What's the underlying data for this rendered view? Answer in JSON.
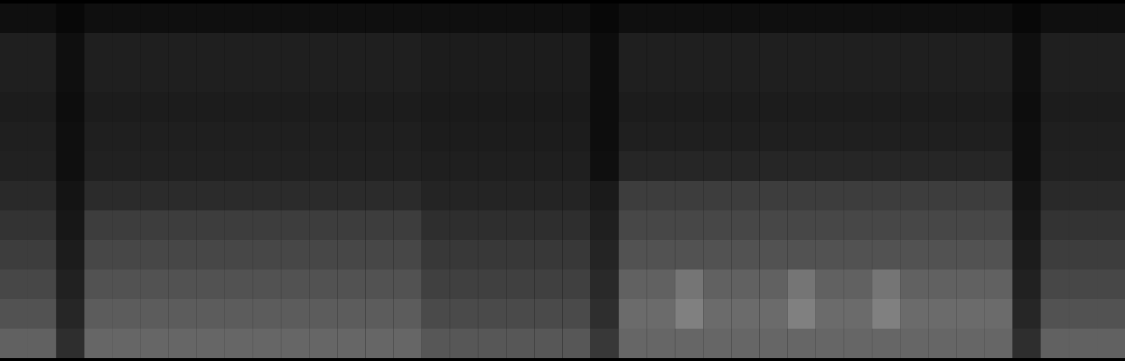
{
  "chart_data": {
    "type": "heatmap",
    "tick_labels": false,
    "zlim": [
      0,
      100
    ],
    "cells": [
      [
        6,
        6,
        3,
        6,
        6,
        6,
        6,
        6,
        6,
        6,
        6,
        6,
        6,
        6,
        6,
        6,
        6,
        6,
        6,
        6,
        6,
        3,
        6,
        6,
        6,
        6,
        6,
        6,
        6,
        6,
        6,
        6,
        6,
        6,
        6,
        6,
        3,
        6,
        6,
        6
      ],
      [
        12,
        12,
        6,
        12,
        12,
        12,
        12,
        12,
        12,
        12,
        12,
        12,
        12,
        12,
        12,
        11,
        11,
        11,
        11,
        11,
        11,
        5,
        12,
        12,
        12,
        12,
        12,
        12,
        12,
        12,
        12,
        12,
        12,
        12,
        12,
        12,
        6,
        12,
        12,
        12
      ],
      [
        12,
        12,
        6,
        12,
        12,
        12,
        12,
        12,
        12,
        12,
        12,
        12,
        12,
        12,
        12,
        11,
        11,
        11,
        11,
        11,
        11,
        5,
        12,
        12,
        12,
        12,
        12,
        12,
        12,
        12,
        12,
        12,
        12,
        12,
        12,
        12,
        6,
        12,
        12,
        12
      ],
      [
        11,
        11,
        5,
        11,
        11,
        11,
        11,
        11,
        11,
        11,
        11,
        11,
        11,
        11,
        11,
        10,
        10,
        10,
        10,
        10,
        10,
        5,
        11,
        11,
        11,
        11,
        11,
        11,
        11,
        11,
        11,
        11,
        11,
        11,
        11,
        11,
        5,
        11,
        11,
        11
      ],
      [
        12,
        12,
        6,
        12,
        12,
        12,
        12,
        12,
        12,
        12,
        12,
        12,
        12,
        12,
        12,
        11,
        11,
        11,
        11,
        11,
        11,
        5,
        12,
        12,
        12,
        12,
        12,
        12,
        12,
        12,
        12,
        12,
        12,
        12,
        12,
        12,
        6,
        12,
        12,
        12
      ],
      [
        13,
        13,
        6,
        13,
        13,
        13,
        13,
        13,
        13,
        13,
        13,
        13,
        13,
        13,
        13,
        12,
        12,
        12,
        12,
        12,
        12,
        6,
        15,
        15,
        15,
        15,
        15,
        15,
        15,
        15,
        15,
        15,
        15,
        15,
        15,
        15,
        6,
        13,
        13,
        13
      ],
      [
        16,
        16,
        8,
        17,
        17,
        17,
        17,
        17,
        17,
        17,
        17,
        17,
        17,
        17,
        17,
        14,
        14,
        14,
        14,
        14,
        14,
        10,
        24,
        24,
        24,
        24,
        24,
        24,
        24,
        24,
        24,
        24,
        24,
        24,
        24,
        24,
        8,
        16,
        16,
        16
      ],
      [
        20,
        20,
        9,
        24,
        24,
        24,
        24,
        24,
        24,
        24,
        24,
        24,
        24,
        24,
        24,
        18,
        18,
        18,
        18,
        18,
        18,
        12,
        28,
        28,
        28,
        28,
        28,
        28,
        28,
        28,
        28,
        28,
        28,
        28,
        28,
        28,
        9,
        20,
        20,
        20
      ],
      [
        24,
        24,
        11,
        28,
        28,
        28,
        28,
        28,
        28,
        28,
        28,
        28,
        28,
        28,
        28,
        22,
        22,
        22,
        22,
        22,
        22,
        14,
        32,
        32,
        32,
        32,
        32,
        32,
        32,
        32,
        32,
        32,
        32,
        32,
        32,
        32,
        11,
        24,
        24,
        24
      ],
      [
        28,
        28,
        13,
        32,
        32,
        32,
        32,
        32,
        32,
        32,
        32,
        32,
        32,
        32,
        32,
        25,
        25,
        25,
        25,
        25,
        25,
        16,
        38,
        38,
        46,
        38,
        38,
        38,
        46,
        38,
        38,
        46,
        38,
        38,
        38,
        38,
        13,
        28,
        28,
        28
      ],
      [
        32,
        32,
        15,
        36,
        36,
        36,
        36,
        36,
        36,
        36,
        36,
        36,
        36,
        36,
        36,
        29,
        29,
        29,
        29,
        29,
        29,
        18,
        42,
        42,
        50,
        42,
        42,
        42,
        50,
        42,
        42,
        50,
        42,
        42,
        42,
        42,
        15,
        32,
        32,
        32
      ],
      [
        38,
        38,
        18,
        40,
        40,
        40,
        40,
        40,
        40,
        40,
        40,
        40,
        40,
        40,
        40,
        34,
        34,
        34,
        34,
        34,
        34,
        22,
        40,
        40,
        40,
        40,
        40,
        40,
        40,
        40,
        40,
        40,
        40,
        40,
        40,
        40,
        18,
        38,
        38,
        38
      ]
    ]
  }
}
